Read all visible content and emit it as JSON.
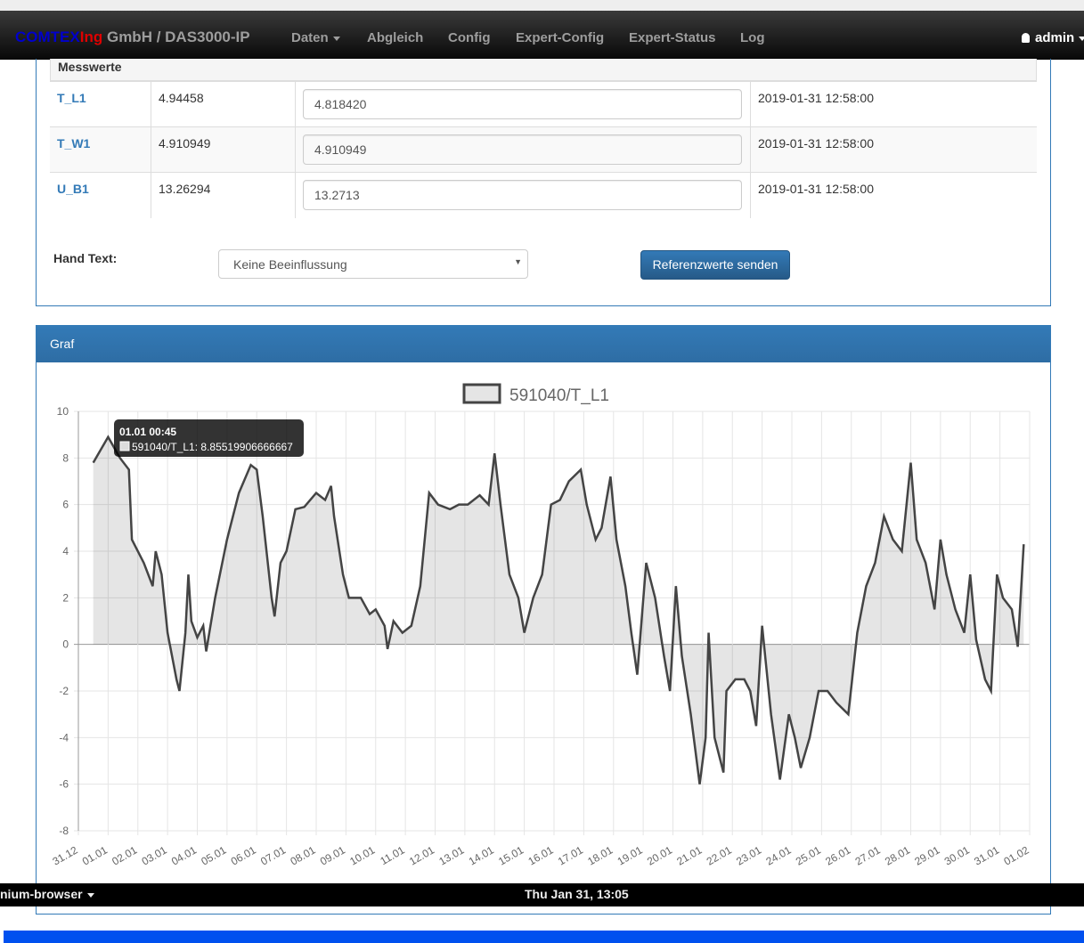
{
  "navbar": {
    "brand_a": "COMTEX",
    "brand_b": "Ing",
    "brand_c": "GmbH / DAS3000-IP",
    "items": [
      "Daten",
      "Abgleich",
      "Config",
      "Expert-Config",
      "Expert-Status",
      "Log"
    ],
    "user": "admin"
  },
  "table": {
    "heading": "Messwerte",
    "rows": [
      [
        "T_L1",
        "4.94458",
        "4.818420",
        "2019-01-31 12:58:00"
      ],
      [
        "T_W1",
        "4.910949",
        "4.910949",
        "2019-01-31 12:58:00"
      ],
      [
        "U_B1",
        "13.26294",
        "13.2713",
        "2019-01-31 12:58:00"
      ]
    ]
  },
  "form": {
    "label": "Hand Text:",
    "select": "Keine Beeinflussung",
    "button": "Referenzwerte senden"
  },
  "panel": {
    "title": "Graf"
  },
  "chart_data": {
    "type": "line",
    "tooltip_title": "01.01 00:45",
    "tooltip_text": "591040/T_L1: 8.85519906666667",
    "x": [
      0.5,
      1.0,
      1.4,
      1.7,
      1.8,
      2.2,
      2.5,
      2.6,
      2.8,
      3.0,
      3.3,
      3.4,
      3.6,
      3.7,
      3.8,
      4.0,
      4.2,
      4.3,
      4.6,
      5.0,
      5.4,
      5.8,
      6.0,
      6.2,
      6.5,
      6.6,
      6.8,
      7.0,
      7.3,
      7.6,
      8.0,
      8.3,
      8.5,
      8.6,
      8.9,
      9.1,
      9.5,
      9.8,
      10.0,
      10.3,
      10.4,
      10.6,
      10.9,
      11.2,
      11.5,
      11.8,
      12.1,
      12.5,
      12.8,
      13.1,
      13.5,
      13.8,
      14.0,
      14.2,
      14.5,
      14.8,
      15.0,
      15.3,
      15.6,
      15.9,
      16.2,
      16.5,
      16.9,
      17.1,
      17.4,
      17.6,
      17.9,
      18.1,
      18.4,
      18.6,
      18.8,
      19.1,
      19.4,
      19.7,
      19.9,
      20.1,
      20.3,
      20.6,
      20.9,
      21.1,
      21.2,
      21.4,
      21.7,
      21.8,
      22.1,
      22.4,
      22.6,
      22.8,
      23.0,
      23.3,
      23.6,
      23.9,
      24.1,
      24.3,
      24.6,
      24.9,
      25.2,
      25.5,
      25.9,
      26.2,
      26.5,
      26.8,
      27.1,
      27.4,
      27.7,
      28.0,
      28.2,
      28.5,
      28.8,
      29.0,
      29.2,
      29.5,
      29.8,
      30.0,
      30.2,
      30.5,
      30.7,
      30.9,
      31.1,
      31.4,
      31.6,
      31.8
    ],
    "series": [
      {
        "name": "591040/T_L1",
        "color": "#444444",
        "values": [
          7.8,
          8.9,
          8.0,
          7.5,
          4.5,
          3.5,
          2.5,
          4.0,
          3.0,
          0.5,
          -1.5,
          -2.0,
          0.5,
          3.0,
          1.0,
          0.3,
          0.8,
          -0.3,
          2.0,
          4.5,
          6.5,
          7.7,
          7.5,
          5.5,
          2.0,
          1.2,
          3.5,
          4.0,
          5.8,
          5.9,
          6.5,
          6.2,
          6.8,
          5.5,
          3.0,
          2.0,
          2.0,
          1.3,
          1.5,
          0.8,
          -0.2,
          1.0,
          0.5,
          0.8,
          2.5,
          6.5,
          6.0,
          5.8,
          6.0,
          6.0,
          6.4,
          6.0,
          8.2,
          6.0,
          3.0,
          2.0,
          0.5,
          2.0,
          3.0,
          6.0,
          6.2,
          7.0,
          7.5,
          6.0,
          4.5,
          5.0,
          7.2,
          4.5,
          2.5,
          0.5,
          -1.3,
          3.5,
          2.0,
          -0.5,
          -2.0,
          2.5,
          -0.5,
          -3.0,
          -6.0,
          -4.0,
          0.5,
          -4.0,
          -5.5,
          -2.0,
          -1.5,
          -1.5,
          -2.0,
          -3.5,
          0.8,
          -3.0,
          -5.8,
          -3.0,
          -4.0,
          -5.3,
          -4.0,
          -2.0,
          -2.0,
          -2.5,
          -3.0,
          0.5,
          2.5,
          3.5,
          5.5,
          4.5,
          4.0,
          7.8,
          4.5,
          3.5,
          1.5,
          4.5,
          3.0,
          1.5,
          0.5,
          3.0,
          0.2,
          -1.5,
          -2.0,
          3.0,
          2.0,
          1.5,
          -0.1,
          4.3
        ]
      }
    ],
    "xlim": [
      0,
      32
    ],
    "xticks": [
      {
        "value": 0,
        "label": "31.12"
      },
      {
        "value": 1,
        "label": "01.01"
      },
      {
        "value": 2,
        "label": "02.01"
      },
      {
        "value": 3,
        "label": "03.01"
      },
      {
        "value": 4,
        "label": "04.01"
      },
      {
        "value": 5,
        "label": "05.01"
      },
      {
        "value": 6,
        "label": "06.01"
      },
      {
        "value": 7,
        "label": "07.01"
      },
      {
        "value": 8,
        "label": "08.01"
      },
      {
        "value": 9,
        "label": "09.01"
      },
      {
        "value": 10,
        "label": "10.01"
      },
      {
        "value": 11,
        "label": "11.01"
      },
      {
        "value": 12,
        "label": "12.01"
      },
      {
        "value": 13,
        "label": "13.01"
      },
      {
        "value": 14,
        "label": "14.01"
      },
      {
        "value": 15,
        "label": "15.01"
      },
      {
        "value": 16,
        "label": "16.01"
      },
      {
        "value": 17,
        "label": "17.01"
      },
      {
        "value": 18,
        "label": "18.01"
      },
      {
        "value": 19,
        "label": "19.01"
      },
      {
        "value": 20,
        "label": "20.01"
      },
      {
        "value": 21,
        "label": "21.01"
      },
      {
        "value": 22,
        "label": "22.01"
      },
      {
        "value": 23,
        "label": "23.01"
      },
      {
        "value": 24,
        "label": "24.01"
      },
      {
        "value": 25,
        "label": "25.01"
      },
      {
        "value": 26,
        "label": "26.01"
      },
      {
        "value": 27,
        "label": "27.01"
      },
      {
        "value": 28,
        "label": "28.01"
      },
      {
        "value": 29,
        "label": "29.01"
      },
      {
        "value": 30,
        "label": "30.01"
      },
      {
        "value": 31,
        "label": "31.01"
      },
      {
        "value": 32,
        "label": "01.02"
      }
    ],
    "ylim": [
      -8,
      10
    ],
    "yticks": [
      -8,
      -6,
      -4,
      -2,
      0,
      2,
      4,
      6,
      8,
      10
    ],
    "grid": true
  },
  "taskbar": {
    "app": "nium-browser",
    "clock": "Thu Jan 31, 13:05"
  }
}
